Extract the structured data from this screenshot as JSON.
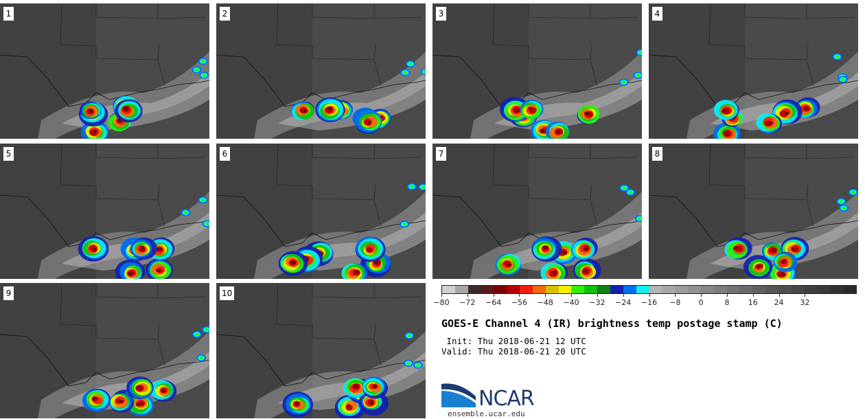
{
  "panels": [
    {
      "label": "1",
      "seed": 3
    },
    {
      "label": "2",
      "seed": 7
    },
    {
      "label": "3",
      "seed": 11
    },
    {
      "label": "4",
      "seed": 17
    },
    {
      "label": "5",
      "seed": 23
    },
    {
      "label": "6",
      "seed": 29
    },
    {
      "label": "7",
      "seed": 31
    },
    {
      "label": "8",
      "seed": 37
    },
    {
      "label": "9",
      "seed": 41
    },
    {
      "label": "10",
      "seed": 43
    }
  ],
  "colorbar": {
    "colors": [
      "#d0d0d0",
      "#a6a6a6",
      "#3b2a2a",
      "#5a1a1a",
      "#7a0000",
      "#b40000",
      "#f02010",
      "#f06a10",
      "#d8c000",
      "#f0f000",
      "#30f000",
      "#10c010",
      "#108010",
      "#1020b0",
      "#0070f0",
      "#10f0f0",
      "#b5b5b5",
      "#a8a8a8",
      "#9c9c9c",
      "#919191",
      "#868686",
      "#7c7c7c",
      "#727272",
      "#696969",
      "#606060",
      "#575757",
      "#4f4f4f",
      "#474747",
      "#404040",
      "#393939",
      "#323232",
      "#2b2b2b"
    ],
    "tick_labels": [
      "−80",
      "−72",
      "−64",
      "−56",
      "−48",
      "−40",
      "−32",
      "−24",
      "−16",
      "−8",
      "0",
      "8",
      "16",
      "24",
      "32"
    ]
  },
  "title": "GOES-E Channel 4 (IR) brightness temp postage stamp (C)",
  "init_label": " Init: Thu 2018-06-21 12 UTC",
  "valid_label": "Valid: Thu 2018-06-21 20 UTC",
  "logo_text": "NCAR",
  "site": "ensemble.ucar.edu"
}
